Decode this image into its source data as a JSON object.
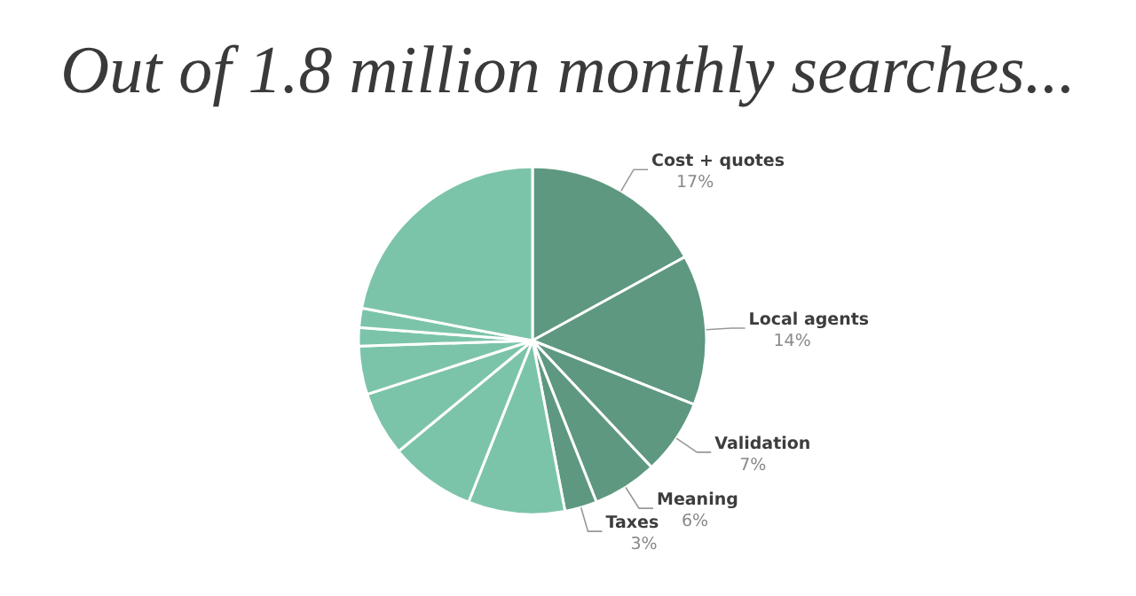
{
  "chart_data": {
    "type": "pie",
    "title": "Out of 1.8 million monthly searches...",
    "categories": [
      "Cost + quotes",
      "Local agents",
      "Validation",
      "Meaning",
      "Taxes",
      null,
      null,
      null,
      null,
      null,
      null,
      null
    ],
    "values": [
      17,
      14,
      7,
      6,
      3,
      9,
      8,
      6,
      4.5,
      1.7,
      1.8,
      22
    ],
    "value_labels": [
      "17%",
      "14%",
      "7%",
      "6%",
      "3%",
      null,
      null,
      null,
      null,
      null,
      null,
      null
    ],
    "colors": [
      "#5e9880",
      "#5e9880",
      "#5e9880",
      "#5e9880",
      "#5e9880",
      "#7cc4a9",
      "#7cc4a9",
      "#7cc4a9",
      "#7cc4a9",
      "#7cc4a9",
      "#7cc4a9",
      "#7cc4a9"
    ]
  }
}
